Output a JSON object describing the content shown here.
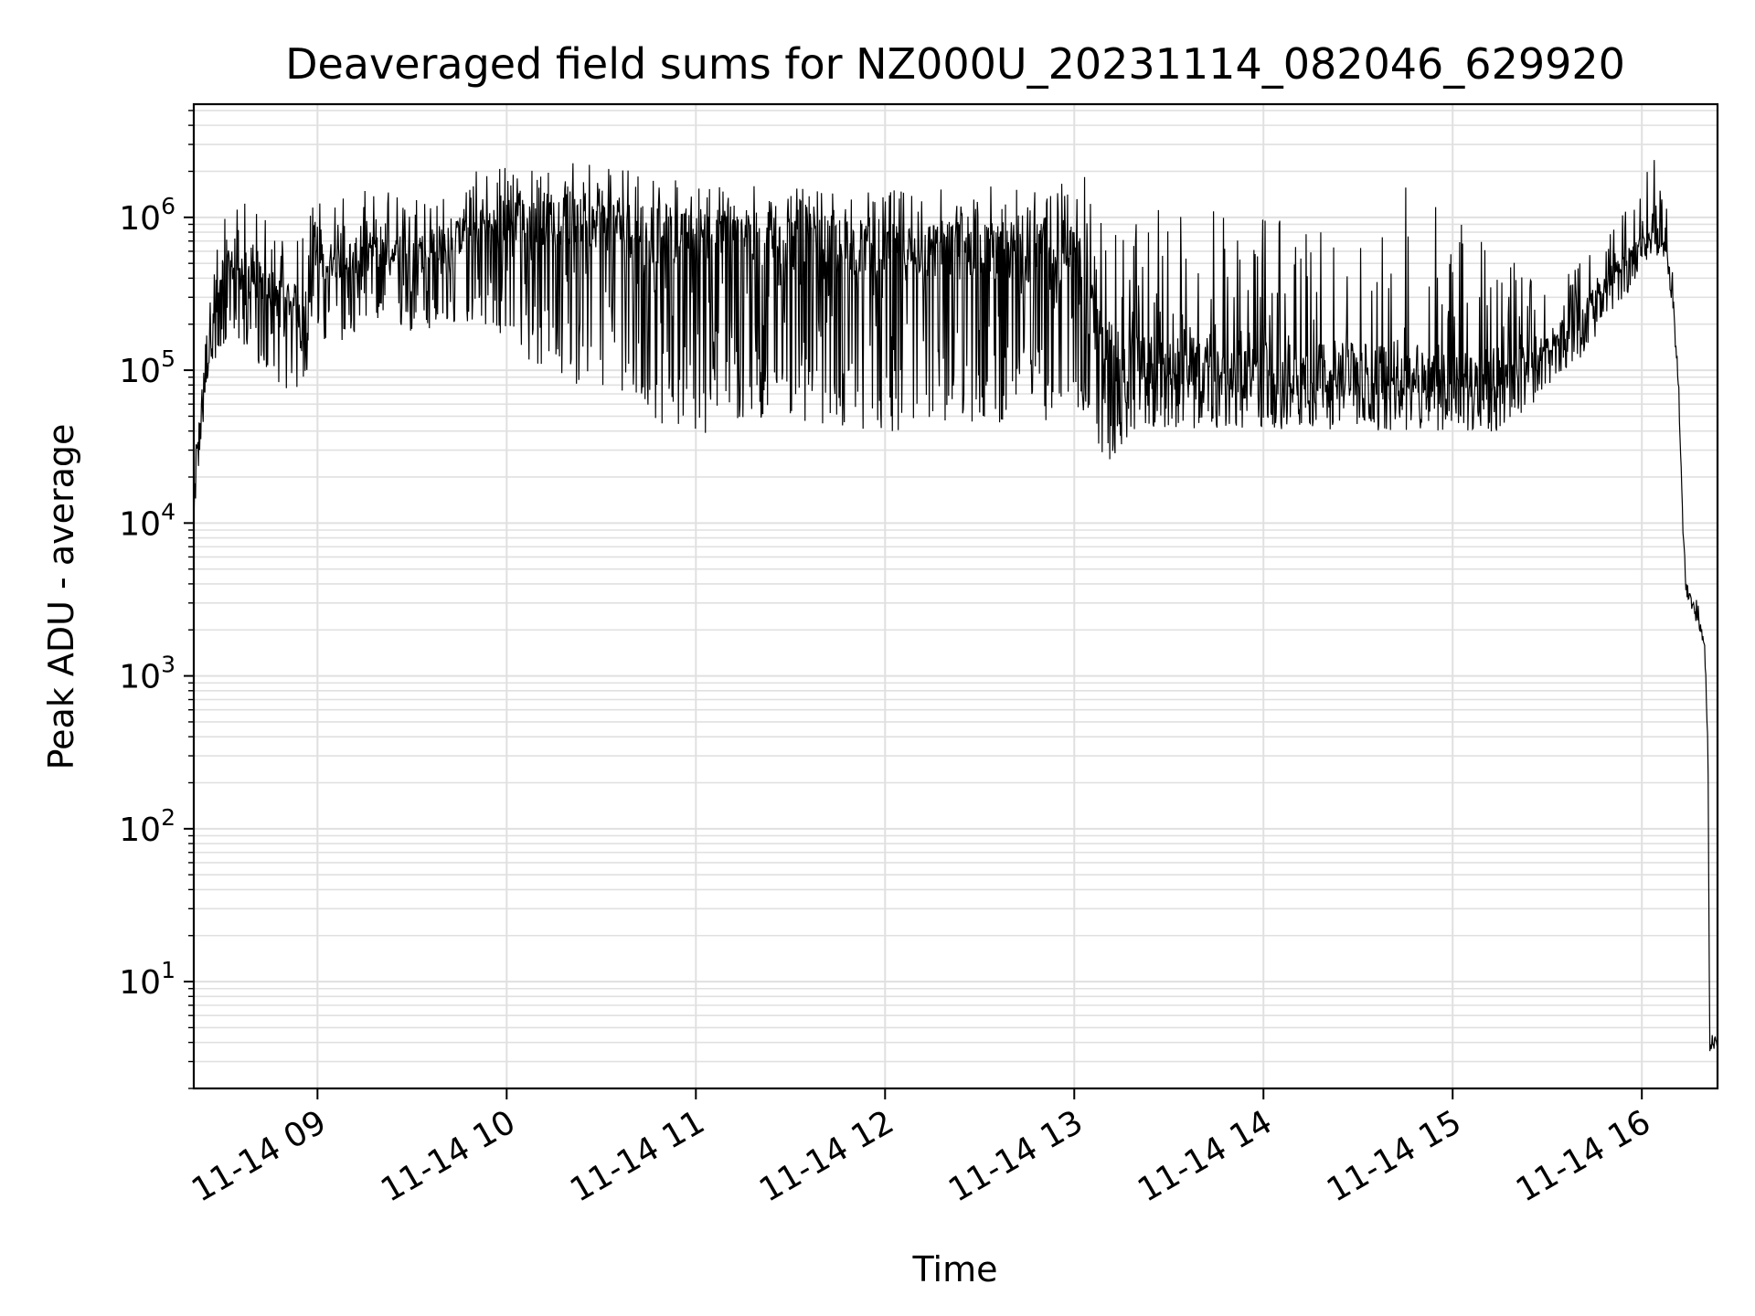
{
  "chart_data": {
    "type": "line",
    "title": "Deaveraged field sums for NZ000U_20231114_082046_629920",
    "xlabel": "Time",
    "ylabel": "Peak ADU - average",
    "yscale": "log",
    "grid": true,
    "grid_minor": true,
    "line_color": "#000000",
    "grid_color": "#e0e0e0",
    "xlim": [
      "2023-11-14 08:20:46",
      "2023-11-14 16:24:00"
    ],
    "ylim": [
      2,
      5500000
    ],
    "x_tick_labels": [
      "11-14 09",
      "11-14 10",
      "11-14 11",
      "11-14 12",
      "11-14 13",
      "11-14 14",
      "11-14 15",
      "11-14 16"
    ],
    "y_tick_labels": [
      {
        "base": "10",
        "exp": "1"
      },
      {
        "base": "10",
        "exp": "2"
      },
      {
        "base": "10",
        "exp": "3"
      },
      {
        "base": "10",
        "exp": "4"
      },
      {
        "base": "10",
        "exp": "5"
      },
      {
        "base": "10",
        "exp": "6"
      }
    ],
    "series": [
      {
        "points": [
          [
            "08:20:46",
            10000
          ],
          [
            "08:21:30",
            30000
          ],
          [
            "08:23:00",
            50000
          ],
          [
            "08:25:00",
            100000
          ],
          [
            "08:27:00",
            200000
          ],
          [
            "08:30:00",
            450000
          ],
          [
            "08:35:00",
            500000
          ],
          [
            "08:40:00",
            400000
          ],
          [
            "08:45:00",
            350000
          ],
          [
            "08:50:00",
            300000
          ],
          [
            "08:55:00",
            250000
          ],
          [
            "09:00:00",
            500000
          ],
          [
            "09:10:00",
            550000
          ],
          [
            "09:20:00",
            600000
          ],
          [
            "09:30:00",
            580000
          ],
          [
            "09:40:00",
            650000
          ],
          [
            "09:50:00",
            850000
          ],
          [
            "10:00:00",
            950000
          ],
          [
            "10:15:00",
            1000000
          ],
          [
            "10:30:00",
            950000
          ],
          [
            "10:45:00",
            800000
          ],
          [
            "11:00:00",
            750000
          ],
          [
            "11:15:00",
            720000
          ],
          [
            "11:30:00",
            700000
          ],
          [
            "11:45:00",
            650000
          ],
          [
            "12:00:00",
            620000
          ],
          [
            "12:15:00",
            600000
          ],
          [
            "12:30:00",
            620000
          ],
          [
            "12:45:00",
            600000
          ],
          [
            "13:00:00",
            550000
          ],
          [
            "13:05:00",
            500000
          ],
          [
            "13:10:00",
            150000
          ],
          [
            "13:20:00",
            120000
          ],
          [
            "13:30:00",
            110000
          ],
          [
            "13:45:00",
            110000
          ],
          [
            "14:00:00",
            100000
          ],
          [
            "14:15:00",
            105000
          ],
          [
            "14:30:00",
            100000
          ],
          [
            "14:45:00",
            100000
          ],
          [
            "15:00:00",
            95000
          ],
          [
            "15:15:00",
            100000
          ],
          [
            "15:25:00",
            110000
          ],
          [
            "15:30:00",
            150000
          ],
          [
            "15:40:00",
            220000
          ],
          [
            "15:50:00",
            400000
          ],
          [
            "16:00:00",
            650000
          ],
          [
            "16:03:00",
            800000
          ],
          [
            "16:05:00",
            750000
          ],
          [
            "16:08:00",
            600000
          ],
          [
            "16:10:00",
            300000
          ],
          [
            "16:12:00",
            50000
          ],
          [
            "16:13:00",
            10000
          ],
          [
            "16:14:00",
            4000
          ],
          [
            "16:16:00",
            3000
          ],
          [
            "16:18:00",
            2500
          ],
          [
            "16:20:00",
            1500
          ],
          [
            "16:21:00",
            300
          ],
          [
            "16:21:30",
            4
          ],
          [
            "16:24:00",
            4
          ]
        ],
        "variability": {
          "08:20:46": [
            -0.2,
            0.2
          ],
          "08:30:00": [
            -0.5,
            0.4
          ],
          "08:50:00": [
            -0.6,
            0.5
          ],
          "09:20:00": [
            -0.5,
            0.4
          ],
          "09:50:00": [
            -0.6,
            0.4
          ],
          "10:10:00": [
            -1.0,
            0.4
          ],
          "10:40:00": [
            -1.2,
            0.4
          ],
          "11:00:00": [
            -1.3,
            0.35
          ],
          "11:40:00": [
            -1.2,
            0.35
          ],
          "12:10:00": [
            -1.2,
            0.4
          ],
          "12:50:00": [
            -1.1,
            0.45
          ],
          "13:05:00": [
            -1.0,
            0.6
          ],
          "13:20:00": [
            -0.45,
            1.0
          ],
          "14:00:00": [
            -0.4,
            1.0
          ],
          "14:45:00": [
            -0.4,
            1.2
          ],
          "15:15:00": [
            -0.4,
            0.9
          ],
          "15:30:00": [
            -0.3,
            0.4
          ],
          "15:50:00": [
            -0.25,
            0.3
          ],
          "16:05:00": [
            -0.15,
            0.5
          ],
          "16:10:00": [
            -0.1,
            0.1
          ],
          "16:24:00": [
            -0.05,
            0.05
          ]
        }
      }
    ]
  }
}
